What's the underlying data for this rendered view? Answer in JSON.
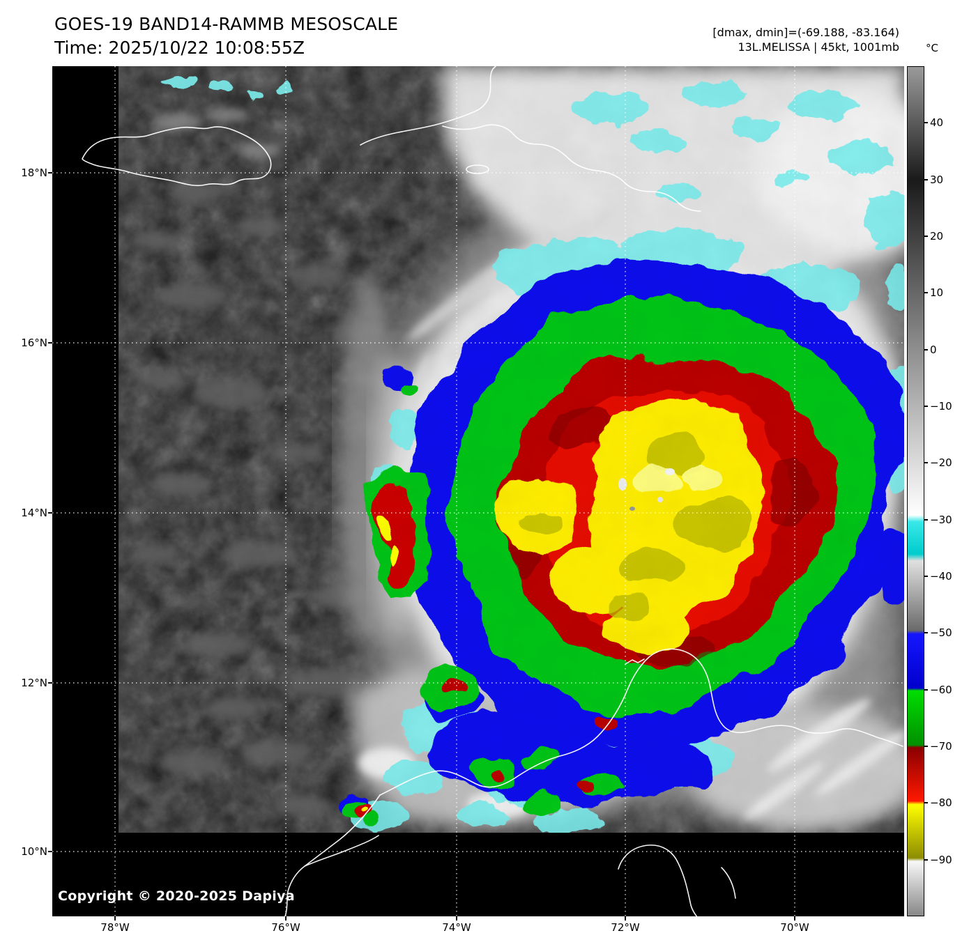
{
  "header": {
    "title": "GOES-19 BAND14-RAMMB MESOSCALE",
    "time_label": "Time: 2025/10/22 10:08:55Z",
    "range_label": "[dmax, dmin]=(-69.188, -83.164)",
    "storm_label": "13L.MELISSA | 45kt, 1001mb"
  },
  "colorbar": {
    "unit": "°C",
    "tick_labels": [
      "40",
      "30",
      "20",
      "10",
      "0",
      "−10",
      "−20",
      "−30",
      "−40",
      "−50",
      "−60",
      "−70",
      "−80",
      "−90"
    ],
    "tick_values": [
      40,
      30,
      20,
      10,
      0,
      -10,
      -20,
      -30,
      -40,
      -50,
      -60,
      -70,
      -80,
      -90
    ],
    "scale_top_c": 50,
    "scale_bottom_c": -100,
    "segment_colors": {
      "warm_dark_gray": "#1a1a1a",
      "cold_white": "#ffffff",
      "cyan": "#00cccc",
      "mid_gray": "#6a6a6a",
      "blue": "#0000cc",
      "green": "#00c000",
      "dark_red": "#8b0000",
      "red": "#ff1800",
      "yellow": "#ffff00",
      "olive": "#8c8c00"
    }
  },
  "axes": {
    "lat_tick_labels": [
      "18°N",
      "16°N",
      "14°N",
      "12°N",
      "10°N"
    ],
    "lon_tick_labels": [
      "78°W",
      "76°W",
      "74°W",
      "72°W",
      "70°W"
    ]
  },
  "map": {
    "copyright": "Copyright © 2020-2025 Dapiya"
  }
}
